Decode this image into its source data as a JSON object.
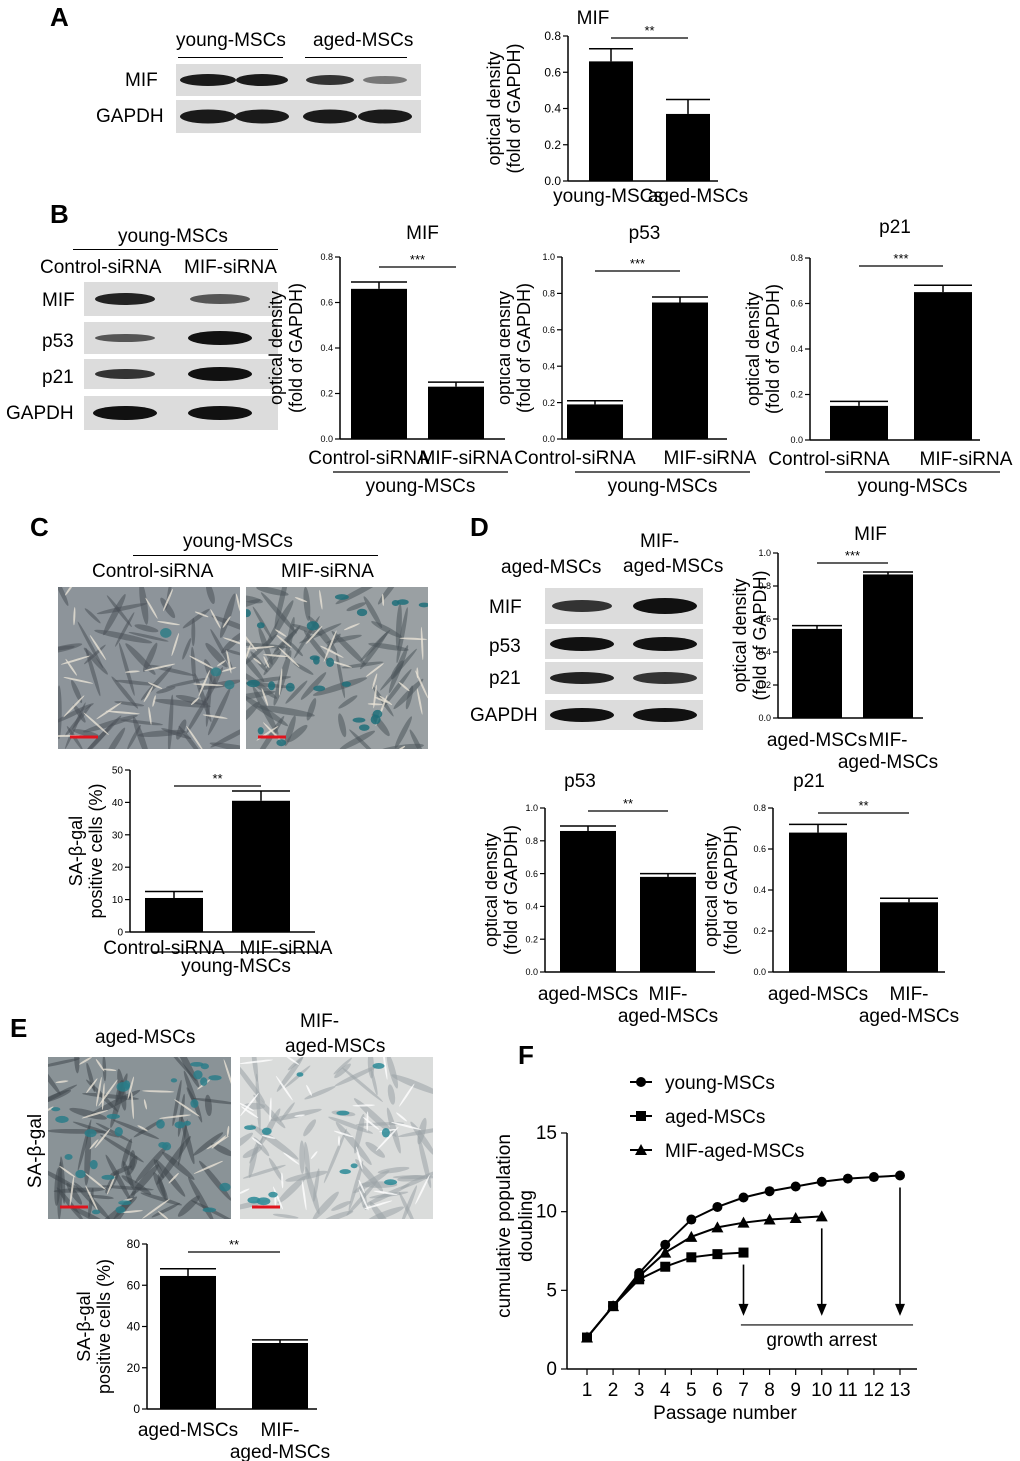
{
  "panels": {
    "A": {
      "letter": "A",
      "blot": {
        "groups": [
          "young-MSCs",
          "aged-MSCs"
        ],
        "rows": [
          "MIF",
          "GAPDH"
        ]
      },
      "chart": {
        "type": "bar",
        "title": "MIF",
        "ylabel_line1": "optical density",
        "ylabel_line2": "(fold of GAPDH)",
        "categories": [
          "young-MSCs",
          "aged-MSCs"
        ],
        "values": [
          0.66,
          0.37
        ],
        "errors": [
          0.07,
          0.08
        ],
        "ylim": [
          0,
          0.8
        ],
        "yticks": [
          "0.0",
          "0.2",
          "0.4",
          "0.6",
          "0.8"
        ],
        "significance": "**"
      }
    },
    "B": {
      "letter": "B",
      "blot": {
        "group": "young-MSCs",
        "lanes": [
          "Control-siRNA",
          "MIF-siRNA"
        ],
        "rows": [
          "MIF",
          "p53",
          "p21",
          "GAPDH"
        ]
      },
      "charts": [
        {
          "type": "bar",
          "title": "MIF",
          "ylabel_line1": "optical density",
          "ylabel_line2": "(fold of GAPDH)",
          "categories": [
            "Control-siRNA",
            "MIF-siRNA"
          ],
          "group": "young-MSCs",
          "values": [
            0.66,
            0.23
          ],
          "errors": [
            0.03,
            0.02
          ],
          "ylim": [
            0,
            0.8
          ],
          "yticks": [
            "0.0",
            "0.2",
            "0.4",
            "0.6",
            "0.8"
          ],
          "significance": "***"
        },
        {
          "type": "bar",
          "title": "p53",
          "ylabel_line1": "optical density",
          "ylabel_line2": "(fold of GAPDH)",
          "categories": [
            "Control-siRNA",
            "MIF-siRNA"
          ],
          "group": "young-MSCs",
          "values": [
            0.19,
            0.75
          ],
          "errors": [
            0.02,
            0.03
          ],
          "ylim": [
            0,
            1.0
          ],
          "yticks": [
            "0.0",
            "0.2",
            "0.4",
            "0.6",
            "0.8",
            "1.0"
          ],
          "significance": "***"
        },
        {
          "type": "bar",
          "title": "p21",
          "ylabel_line1": "optical density",
          "ylabel_line2": "(fold of GAPDH)",
          "categories": [
            "Control-siRNA",
            "MIF-siRNA"
          ],
          "group": "young-MSCs",
          "values": [
            0.15,
            0.65
          ],
          "errors": [
            0.02,
            0.03
          ],
          "ylim": [
            0,
            0.8
          ],
          "yticks": [
            "0.0",
            "0.2",
            "0.4",
            "0.6",
            "0.8"
          ],
          "significance": "***"
        }
      ]
    },
    "C": {
      "letter": "C",
      "group": "young-MSCs",
      "images": [
        "Control-siRNA",
        "MIF-siRNA"
      ],
      "chart": {
        "type": "bar",
        "ylabel_line1": "SA-β-gal",
        "ylabel_line2": "positive cells (%)",
        "categories": [
          "Control-siRNA",
          "MIF-siRNA"
        ],
        "group": "young-MSCs",
        "values": [
          10.5,
          40.5
        ],
        "errors": [
          2,
          3
        ],
        "ylim": [
          0,
          50
        ],
        "yticks": [
          "0",
          "10",
          "20",
          "30",
          "40",
          "50"
        ],
        "significance": "**"
      }
    },
    "D": {
      "letter": "D",
      "blot": {
        "lane1": "aged-MSCs",
        "lane2_line1": "MIF-",
        "lane2_line2": "aged-MSCs",
        "rows": [
          "MIF",
          "p53",
          "p21",
          "GAPDH"
        ]
      },
      "charts": [
        {
          "type": "bar",
          "title": "MIF",
          "ylabel_line1": "optical density",
          "ylabel_line2": "(fold of GAPDH)",
          "categories": [
            "aged-MSCs",
            "MIF-|aged-MSCs"
          ],
          "values": [
            0.54,
            0.87
          ],
          "errors": [
            0.02,
            0.015
          ],
          "ylim": [
            0,
            1.0
          ],
          "yticks": [
            "0.0",
            "0.2",
            "0.4",
            "0.6",
            "0.8",
            "1.0"
          ],
          "significance": "***"
        },
        {
          "type": "bar",
          "title": "p53",
          "ylabel_line1": "optical density",
          "ylabel_line2": "(fold of GAPDH)",
          "categories": [
            "aged-MSCs",
            "MIF-|aged-MSCs"
          ],
          "values": [
            0.86,
            0.58
          ],
          "errors": [
            0.03,
            0.02
          ],
          "ylim": [
            0,
            1.0
          ],
          "yticks": [
            "0.0",
            "0.2",
            "0.4",
            "0.6",
            "0.8",
            "1.0"
          ],
          "significance": "**"
        },
        {
          "type": "bar",
          "title": "p21",
          "ylabel_line1": "optical density",
          "ylabel_line2": "(fold of GAPDH)",
          "categories": [
            "aged-MSCs",
            "MIF-|aged-MSCs"
          ],
          "values": [
            0.68,
            0.34
          ],
          "errors": [
            0.04,
            0.02
          ],
          "ylim": [
            0,
            0.8
          ],
          "yticks": [
            "0.0",
            "0.2",
            "0.4",
            "0.6",
            "0.8"
          ],
          "significance": "**"
        }
      ]
    },
    "E": {
      "letter": "E",
      "side_label": "SA-β-gal",
      "img1": "aged-MSCs",
      "img2_line1": "MIF-",
      "img2_line2": "aged-MSCs",
      "chart": {
        "type": "bar",
        "ylabel_line1": "SA-β-gal",
        "ylabel_line2": "positive cells (%)",
        "categories": [
          "aged-MSCs",
          "MIF-|aged-MSCs"
        ],
        "values": [
          64.5,
          32
        ],
        "errors": [
          3.5,
          1.5
        ],
        "ylim": [
          0,
          80
        ],
        "yticks": [
          "0",
          "20",
          "40",
          "60",
          "80"
        ],
        "significance": "**"
      }
    },
    "F": {
      "letter": "F",
      "chart": {
        "type": "line",
        "xlabel": "Passage number",
        "ylabel_line1": "cumulative population",
        "ylabel_line2": "doubling",
        "xlim": [
          1,
          13
        ],
        "ylim": [
          0,
          15
        ],
        "yticks": [
          "0",
          "5",
          "10",
          "15"
        ],
        "xticks": [
          "1",
          "2",
          "3",
          "4",
          "5",
          "6",
          "7",
          "8",
          "9",
          "10",
          "11",
          "12",
          "13"
        ],
        "series": [
          {
            "name": "young-MSCs",
            "marker": "circle",
            "x": [
              1,
              2,
              3,
              4,
              5,
              6,
              7,
              8,
              9,
              10,
              11,
              12,
              13
            ],
            "y": [
              2,
              4,
              6.1,
              7.9,
              9.5,
              10.3,
              10.9,
              11.3,
              11.6,
              11.9,
              12.1,
              12.2,
              12.3
            ]
          },
          {
            "name": "aged-MSCs",
            "marker": "square",
            "x": [
              1,
              2,
              3,
              4,
              5,
              6,
              7
            ],
            "y": [
              2,
              4,
              5.7,
              6.5,
              7.1,
              7.3,
              7.4
            ]
          },
          {
            "name": "MIF-aged-MSCs",
            "marker": "triangle",
            "x": [
              1,
              2,
              3,
              4,
              5,
              6,
              7,
              8,
              9,
              10
            ],
            "y": [
              2,
              4,
              5.9,
              7.4,
              8.4,
              9.0,
              9.3,
              9.5,
              9.6,
              9.7
            ]
          }
        ],
        "arrows_at_x": [
          7,
          10,
          13
        ],
        "annotation": "growth arrest"
      }
    }
  }
}
